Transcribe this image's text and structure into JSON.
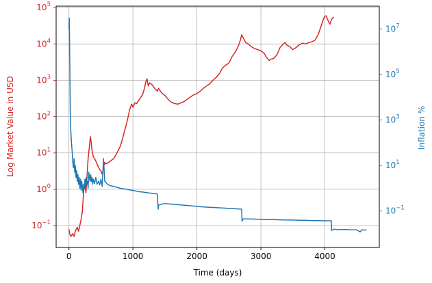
{
  "chart_data": {
    "type": "line",
    "title": "",
    "xlabel": "Time (days)",
    "ylabel_left": "Log Market Value in USD",
    "ylabel_right": "Inflation %",
    "x_range": [
      -200,
      4850
    ],
    "x_ticks": [
      0,
      1000,
      2000,
      3000,
      4000
    ],
    "left_axis": {
      "scale": "log",
      "range": [
        0.025,
        110000
      ],
      "ticks": [
        {
          "value": 0.1,
          "base": "10",
          "exp": "−1"
        },
        {
          "value": 1,
          "base": "10",
          "exp": "0"
        },
        {
          "value": 10,
          "base": "10",
          "exp": "1"
        },
        {
          "value": 100,
          "base": "10",
          "exp": "2"
        },
        {
          "value": 1000,
          "base": "10",
          "exp": "3"
        },
        {
          "value": 10000,
          "base": "10",
          "exp": "4"
        },
        {
          "value": 100000,
          "base": "10",
          "exp": "5"
        }
      ],
      "color": "#d62728"
    },
    "right_axis": {
      "scale": "log",
      "range": [
        0.0025,
        100000000
      ],
      "ticks": [
        {
          "value": 0.1,
          "base": "10",
          "exp": "−1"
        },
        {
          "value": 10,
          "base": "10",
          "exp": "1"
        },
        {
          "value": 1000,
          "base": "10",
          "exp": "3"
        },
        {
          "value": 100000,
          "base": "10",
          "exp": "5"
        },
        {
          "value": 10000000,
          "base": "10",
          "exp": "7"
        }
      ],
      "color": "#1f77b4"
    },
    "grid": true,
    "series": [
      {
        "axis": "left",
        "color": "#d62728",
        "points": [
          [
            0,
            0.08
          ],
          [
            10,
            0.06
          ],
          [
            30,
            0.05
          ],
          [
            60,
            0.06
          ],
          [
            80,
            0.05
          ],
          [
            100,
            0.07
          ],
          [
            130,
            0.09
          ],
          [
            150,
            0.07
          ],
          [
            170,
            0.1
          ],
          [
            190,
            0.15
          ],
          [
            210,
            0.25
          ],
          [
            230,
            0.9
          ],
          [
            250,
            1.3
          ],
          [
            265,
            0.8
          ],
          [
            280,
            2.0
          ],
          [
            300,
            7
          ],
          [
            320,
            15
          ],
          [
            335,
            28
          ],
          [
            345,
            22
          ],
          [
            360,
            12
          ],
          [
            380,
            8
          ],
          [
            400,
            7
          ],
          [
            420,
            6
          ],
          [
            450,
            4.5
          ],
          [
            480,
            3.5
          ],
          [
            500,
            3.2
          ],
          [
            520,
            2.6
          ],
          [
            540,
            4
          ],
          [
            560,
            5.5
          ],
          [
            580,
            5
          ],
          [
            600,
            5.2
          ],
          [
            650,
            6
          ],
          [
            700,
            7
          ],
          [
            750,
            10
          ],
          [
            800,
            15
          ],
          [
            830,
            22
          ],
          [
            860,
            35
          ],
          [
            890,
            55
          ],
          [
            920,
            90
          ],
          [
            950,
            160
          ],
          [
            980,
            220
          ],
          [
            1000,
            180
          ],
          [
            1030,
            240
          ],
          [
            1060,
            230
          ],
          [
            1100,
            300
          ],
          [
            1150,
            400
          ],
          [
            1180,
            600
          ],
          [
            1200,
            900
          ],
          [
            1220,
            1100
          ],
          [
            1240,
            700
          ],
          [
            1260,
            850
          ],
          [
            1300,
            750
          ],
          [
            1340,
            600
          ],
          [
            1380,
            500
          ],
          [
            1400,
            600
          ],
          [
            1450,
            450
          ],
          [
            1500,
            380
          ],
          [
            1550,
            300
          ],
          [
            1600,
            250
          ],
          [
            1650,
            230
          ],
          [
            1700,
            220
          ],
          [
            1750,
            240
          ],
          [
            1800,
            260
          ],
          [
            1850,
            300
          ],
          [
            1900,
            350
          ],
          [
            1950,
            400
          ],
          [
            2000,
            430
          ],
          [
            2050,
            500
          ],
          [
            2100,
            600
          ],
          [
            2150,
            700
          ],
          [
            2200,
            800
          ],
          [
            2250,
            1000
          ],
          [
            2300,
            1200
          ],
          [
            2350,
            1500
          ],
          [
            2400,
            2200
          ],
          [
            2450,
            2600
          ],
          [
            2500,
            3000
          ],
          [
            2550,
            4500
          ],
          [
            2600,
            6000
          ],
          [
            2650,
            9000
          ],
          [
            2680,
            13000
          ],
          [
            2700,
            18000
          ],
          [
            2730,
            14000
          ],
          [
            2760,
            11000
          ],
          [
            2800,
            10000
          ],
          [
            2850,
            8500
          ],
          [
            2900,
            7500
          ],
          [
            2950,
            7000
          ],
          [
            3000,
            6500
          ],
          [
            3050,
            5500
          ],
          [
            3100,
            4000
          ],
          [
            3130,
            3500
          ],
          [
            3150,
            3800
          ],
          [
            3200,
            4000
          ],
          [
            3250,
            5000
          ],
          [
            3300,
            8000
          ],
          [
            3350,
            10000
          ],
          [
            3380,
            11000
          ],
          [
            3400,
            9500
          ],
          [
            3450,
            8500
          ],
          [
            3500,
            7000
          ],
          [
            3550,
            8000
          ],
          [
            3600,
            9500
          ],
          [
            3650,
            10500
          ],
          [
            3700,
            10000
          ],
          [
            3750,
            11000
          ],
          [
            3800,
            11500
          ],
          [
            3850,
            13000
          ],
          [
            3900,
            19000
          ],
          [
            3950,
            35000
          ],
          [
            3980,
            50000
          ],
          [
            4000,
            58000
          ],
          [
            4020,
            60000
          ],
          [
            4040,
            48000
          ],
          [
            4060,
            40000
          ],
          [
            4080,
            35000
          ],
          [
            4100,
            45000
          ],
          [
            4120,
            52000
          ],
          [
            4140,
            55000
          ]
        ]
      },
      {
        "axis": "right",
        "color": "#1f77b4",
        "points": [
          [
            0,
            10000000
          ],
          [
            5,
            30000000
          ],
          [
            10,
            3000000
          ],
          [
            15,
            100000
          ],
          [
            20,
            2000
          ],
          [
            30,
            300
          ],
          [
            40,
            100
          ],
          [
            50,
            40
          ],
          [
            60,
            15
          ],
          [
            70,
            8
          ],
          [
            80,
            20
          ],
          [
            90,
            5
          ],
          [
            100,
            10
          ],
          [
            110,
            3
          ],
          [
            120,
            6
          ],
          [
            130,
            2
          ],
          [
            140,
            4
          ],
          [
            150,
            1.5
          ],
          [
            160,
            3
          ],
          [
            170,
            1
          ],
          [
            180,
            2.5
          ],
          [
            190,
            0.8
          ],
          [
            200,
            2
          ],
          [
            210,
            1.2
          ],
          [
            220,
            0.6
          ],
          [
            230,
            1.5
          ],
          [
            240,
            1
          ],
          [
            250,
            2.5
          ],
          [
            260,
            1.2
          ],
          [
            270,
            3
          ],
          [
            280,
            1.5
          ],
          [
            290,
            2
          ],
          [
            300,
            1
          ],
          [
            310,
            5
          ],
          [
            320,
            3
          ],
          [
            330,
            2
          ],
          [
            340,
            4
          ],
          [
            350,
            2
          ],
          [
            360,
            3
          ],
          [
            370,
            1.5
          ],
          [
            380,
            2.5
          ],
          [
            400,
            1.6
          ],
          [
            420,
            3
          ],
          [
            440,
            1.5
          ],
          [
            460,
            2
          ],
          [
            480,
            1.4
          ],
          [
            500,
            2.5
          ],
          [
            520,
            1.2
          ],
          [
            540,
            20
          ],
          [
            560,
            2
          ],
          [
            580,
            1.8
          ],
          [
            600,
            1.5
          ],
          [
            650,
            1.3
          ],
          [
            700,
            1.2
          ],
          [
            750,
            1.1
          ],
          [
            800,
            1.0
          ],
          [
            850,
            0.95
          ],
          [
            900,
            0.9
          ],
          [
            950,
            0.85
          ],
          [
            1000,
            0.8
          ],
          [
            1050,
            0.75
          ],
          [
            1100,
            0.7
          ],
          [
            1150,
            0.68
          ],
          [
            1200,
            0.65
          ],
          [
            1250,
            0.62
          ],
          [
            1300,
            0.6
          ],
          [
            1350,
            0.58
          ],
          [
            1380,
            0.55
          ],
          [
            1395,
            0.12
          ],
          [
            1400,
            0.18
          ],
          [
            1450,
            0.2
          ],
          [
            1500,
            0.21
          ],
          [
            1600,
            0.2
          ],
          [
            1700,
            0.19
          ],
          [
            1800,
            0.18
          ],
          [
            1900,
            0.17
          ],
          [
            2000,
            0.16
          ],
          [
            2100,
            0.15
          ],
          [
            2200,
            0.145
          ],
          [
            2300,
            0.14
          ],
          [
            2400,
            0.135
          ],
          [
            2500,
            0.13
          ],
          [
            2600,
            0.125
          ],
          [
            2700,
            0.12
          ],
          [
            2705,
            0.035
          ],
          [
            2720,
            0.045
          ],
          [
            2800,
            0.045
          ],
          [
            2900,
            0.044
          ],
          [
            3000,
            0.043
          ],
          [
            3100,
            0.042
          ],
          [
            3200,
            0.042
          ],
          [
            3300,
            0.041
          ],
          [
            3400,
            0.04
          ],
          [
            3500,
            0.04
          ],
          [
            3600,
            0.039
          ],
          [
            3700,
            0.039
          ],
          [
            3800,
            0.038
          ],
          [
            3900,
            0.038
          ],
          [
            4000,
            0.037
          ],
          [
            4050,
            0.037
          ],
          [
            4100,
            0.037
          ],
          [
            4105,
            0.014
          ],
          [
            4150,
            0.016
          ],
          [
            4200,
            0.015
          ],
          [
            4300,
            0.0155
          ],
          [
            4400,
            0.015
          ],
          [
            4500,
            0.0148
          ],
          [
            4550,
            0.012
          ],
          [
            4580,
            0.015
          ],
          [
            4620,
            0.0145
          ],
          [
            4650,
            0.015
          ]
        ]
      }
    ]
  }
}
